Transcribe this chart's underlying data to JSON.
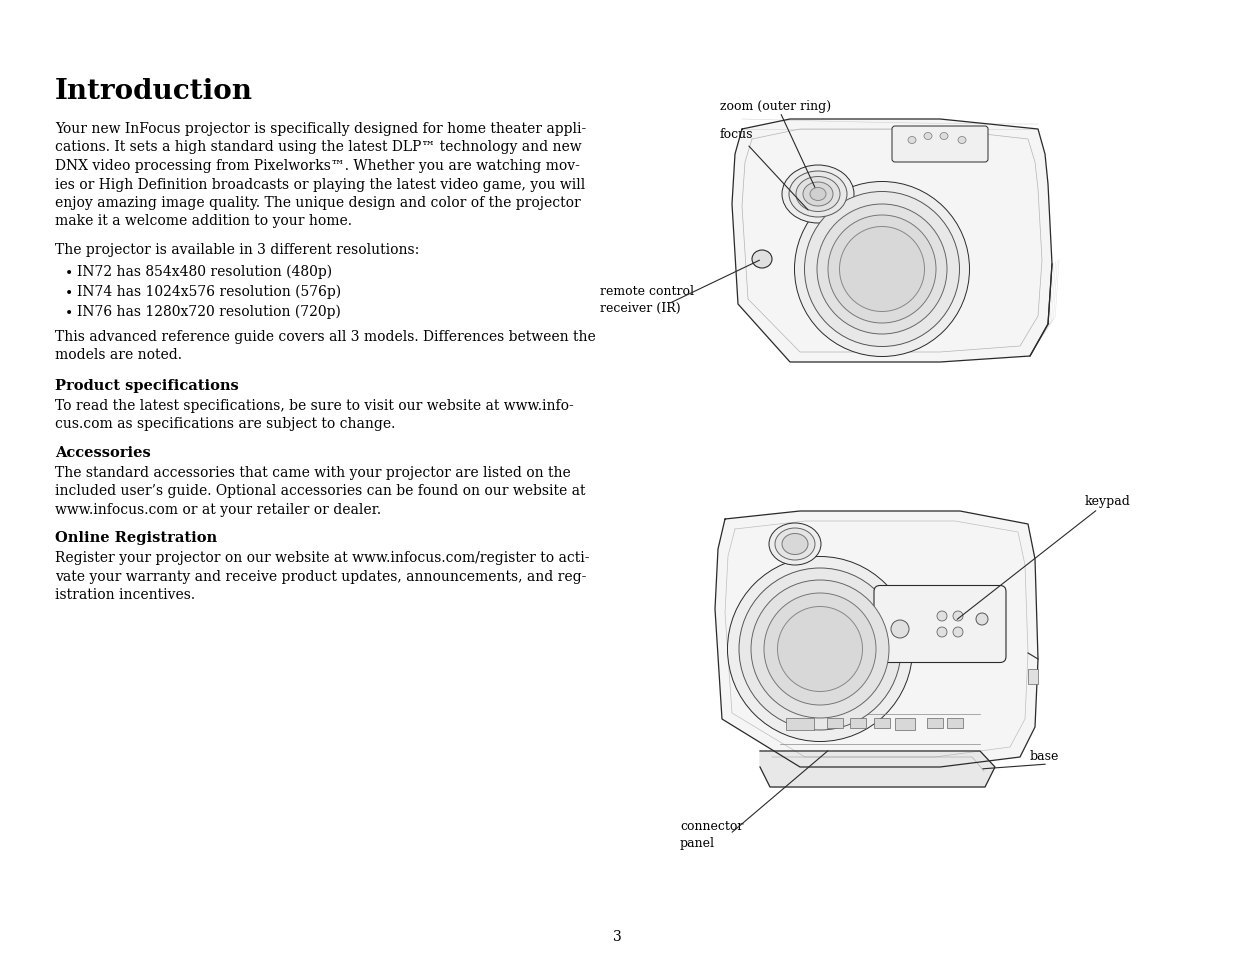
{
  "title": "Introduction",
  "bg_color": "#ffffff",
  "text_color": "#000000",
  "page_number": "3",
  "body_text": "Your new InFocus projector is specifically designed for home theater appli-\ncations. It sets a high standard using the latest DLP™ technology and new\nDNX video processing from Pixelworks™. Whether you are watching mov-\nies or High Definition broadcasts or playing the latest video game, you will\nenjoy amazing image quality. The unique design and color of the projector\nmake it a welcome addition to your home.",
  "resolutions_intro": "The projector is available in 3 different resolutions:",
  "bullets": [
    "IN72 has 854x480 resolution (480p)",
    "IN74 has 1024x576 resolution (576p)",
    "IN76 has 1280x720 resolution (720p)"
  ],
  "after_bullets": "This advanced reference guide covers all 3 models. Differences between the\nmodels are noted.",
  "section2_title": "Product specifications",
  "section2_text": "To read the latest specifications, be sure to visit our website at www.info-\ncus.com as specifications are subject to change.",
  "section3_title": "Accessories",
  "section3_text": "The standard accessories that came with your projector are listed on the\nincluded user’s guide. Optional accessories can be found on our website at\nwww.infocus.com or at your retailer or dealer.",
  "section4_title": "Online Registration",
  "section4_text": "Register your projector on our website at www.infocus.com/register to acti-\nvate your warranty and receive product updates, announcements, and reg-\nistration incentives.",
  "line_color": "#2a2a2a",
  "line_width": 0.9
}
